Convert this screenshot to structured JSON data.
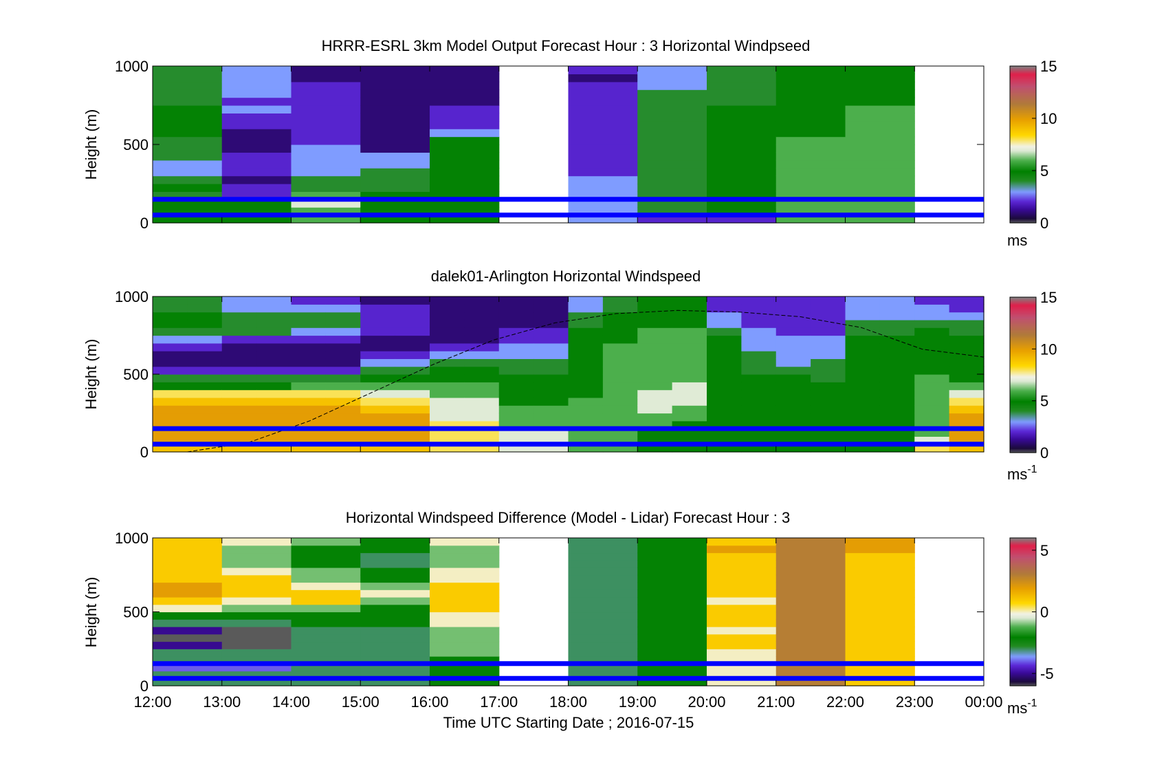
{
  "figure": {
    "xlabel": "Time UTC  Starting Date ; 2016-07-15",
    "xticks": [
      "12:00",
      "13:00",
      "14:00",
      "15:00",
      "16:00",
      "17:00",
      "18:00",
      "19:00",
      "20:00",
      "21:00",
      "22:00",
      "23:00",
      "00:00"
    ],
    "ylabel": "Height (m)",
    "yticks": [
      "0",
      "500",
      "1000"
    ],
    "reference_line_heights_m": [
      150,
      50
    ],
    "reference_line_color": "#0000ff",
    "colorbar_stops": [
      [
        "#5a5a5a",
        0
      ],
      [
        "#1b0a3c",
        0.03
      ],
      [
        "#3a0a9a",
        0.09
      ],
      [
        "#5c28d6",
        0.14
      ],
      [
        "#7f9cff",
        0.2
      ],
      [
        "#228b22",
        0.27
      ],
      [
        "#008000",
        0.33
      ],
      [
        "#4caf4c",
        0.4
      ],
      [
        "#dbe9d2",
        0.46
      ],
      [
        "#f2f2e4",
        0.49
      ],
      [
        "#ffd800",
        0.56
      ],
      [
        "#e8a000",
        0.66
      ],
      [
        "#b07a3a",
        0.76
      ],
      [
        "#c05070",
        0.87
      ],
      [
        "#e0204a",
        0.95
      ],
      [
        "#808080",
        1.0
      ]
    ]
  },
  "chart_data": [
    {
      "type": "heatmap",
      "title": "HRRR-ESRL 3km Model Output   Forecast Hour : 3 Horizontal Windpseed",
      "xlabel": "",
      "ylabel": "Height (m)",
      "xlim": [
        "12:00",
        "00:00"
      ],
      "ylim": [
        0,
        1000
      ],
      "clim": [
        0,
        15
      ],
      "colorbar_ticks": [
        "0",
        "5",
        "10",
        "15"
      ],
      "colorbar_unit": "ms",
      "colorbar_unit_sup": "",
      "hour_columns": [
        "12:00",
        "13:00",
        "14:00",
        "15:00",
        "16:00",
        "17:00",
        "18:00",
        "19:00",
        "20:00",
        "21:00",
        "22:00",
        "23:00"
      ],
      "heights_m": [
        25,
        75,
        125,
        175,
        225,
        275,
        325,
        375,
        425,
        475,
        525,
        575,
        625,
        675,
        725,
        775,
        825,
        875,
        925,
        975
      ],
      "values_ms": [
        [
          5,
          5,
          5,
          4,
          5,
          4,
          3,
          3,
          4,
          4,
          4,
          5,
          5,
          5,
          5,
          4,
          4,
          4,
          4,
          4
        ],
        [
          5,
          5,
          5,
          2,
          2,
          1,
          2,
          2,
          2,
          1,
          1,
          1,
          2,
          2,
          3,
          2,
          3,
          3,
          3,
          3
        ],
        [
          6,
          6,
          7,
          6,
          4,
          4,
          3,
          3,
          3,
          3,
          2,
          2,
          2,
          2,
          2,
          2,
          2,
          2,
          1,
          1
        ],
        [
          5,
          5,
          5,
          5,
          4,
          4,
          4,
          3,
          3,
          1,
          1,
          1,
          1,
          1,
          1,
          1,
          1,
          1,
          1,
          1
        ],
        [
          5,
          5,
          5,
          5,
          5,
          5,
          5,
          5,
          5,
          5,
          5,
          3,
          2,
          2,
          2,
          1,
          1,
          1,
          1,
          1
        ],
        [
          null,
          null,
          null,
          null,
          null,
          null,
          null,
          null,
          null,
          null,
          null,
          null,
          null,
          null,
          null,
          null,
          null,
          null,
          null,
          null
        ],
        [
          3,
          3,
          3,
          3,
          3,
          3,
          2,
          2,
          2,
          2,
          2,
          2,
          2,
          2,
          2,
          2,
          2,
          2,
          1,
          2
        ],
        [
          2,
          4,
          4,
          4,
          4,
          4,
          4,
          4,
          4,
          4,
          4,
          4,
          4,
          4,
          4,
          4,
          4,
          3,
          3,
          3
        ],
        [
          2,
          5,
          5,
          5,
          5,
          5,
          5,
          5,
          5,
          5,
          5,
          5,
          5,
          5,
          5,
          4,
          4,
          4,
          4,
          4
        ],
        [
          6,
          6,
          6,
          6,
          6,
          6,
          6,
          6,
          6,
          6,
          6,
          5,
          5,
          5,
          5,
          5,
          5,
          5,
          5,
          5
        ],
        [
          6,
          6,
          6,
          6,
          6,
          6,
          6,
          6,
          6,
          6,
          6,
          6,
          6,
          6,
          6,
          5,
          5,
          5,
          5,
          5
        ],
        [
          null,
          null,
          null,
          null,
          null,
          null,
          null,
          null,
          null,
          null,
          null,
          null,
          null,
          null,
          null,
          null,
          null,
          null,
          null,
          null
        ]
      ]
    },
    {
      "type": "heatmap",
      "title": "dalek01-Arlington  Horizontal Windspeed",
      "xlabel": "",
      "ylabel": "Height (m)",
      "xlim": [
        "12:00",
        "00:00"
      ],
      "ylim": [
        0,
        1000
      ],
      "clim": [
        0,
        15
      ],
      "colorbar_ticks": [
        "0",
        "5",
        "10",
        "15"
      ],
      "colorbar_unit": "ms",
      "colorbar_unit_sup": "-1",
      "half_hour_columns": [
        "12:00",
        "12:30",
        "13:00",
        "13:30",
        "14:00",
        "14:30",
        "15:00",
        "15:30",
        "16:00",
        "16:30",
        "17:00",
        "17:30",
        "18:00",
        "18:30",
        "19:00",
        "19:30",
        "20:00",
        "20:30",
        "21:00",
        "21:30",
        "22:00",
        "22:30",
        "23:00",
        "23:30"
      ],
      "heights_m": [
        25,
        75,
        125,
        175,
        225,
        275,
        325,
        375,
        425,
        475,
        525,
        575,
        625,
        675,
        725,
        775,
        825,
        875,
        925,
        975
      ],
      "values_ms": [
        [
          9,
          10,
          10,
          10,
          10,
          10,
          9,
          8,
          5,
          4,
          2,
          1,
          1,
          2,
          3,
          4,
          5,
          5,
          4,
          4
        ],
        [
          9,
          10,
          10,
          10,
          10,
          10,
          9,
          8,
          5,
          4,
          2,
          1,
          1,
          2,
          3,
          4,
          5,
          5,
          4,
          4
        ],
        [
          9,
          10,
          10,
          10,
          10,
          10,
          9,
          8,
          5,
          4,
          2,
          1,
          1,
          1,
          2,
          4,
          4,
          4,
          3,
          3
        ],
        [
          9,
          10,
          10,
          10,
          10,
          10,
          9,
          8,
          5,
          4,
          2,
          1,
          1,
          1,
          2,
          4,
          4,
          4,
          3,
          3
        ],
        [
          9,
          10,
          10,
          10,
          10,
          10,
          9,
          8,
          6,
          4,
          2,
          1,
          1,
          1,
          2,
          3,
          4,
          4,
          3,
          2
        ],
        [
          9,
          10,
          10,
          10,
          10,
          10,
          9,
          8,
          6,
          4,
          2,
          1,
          1,
          1,
          2,
          3,
          4,
          4,
          3,
          2
        ],
        [
          9,
          10,
          10,
          10,
          10,
          9,
          8,
          7,
          6,
          5,
          4,
          3,
          2,
          1,
          1,
          2,
          2,
          2,
          2,
          1
        ],
        [
          9,
          10,
          10,
          10,
          10,
          9,
          8,
          7,
          6,
          5,
          4,
          3,
          2,
          1,
          1,
          2,
          2,
          2,
          2,
          1
        ],
        [
          8,
          8,
          8,
          8,
          7,
          7,
          7,
          6,
          6,
          5,
          5,
          4,
          3,
          2,
          1,
          1,
          1,
          1,
          1,
          1
        ],
        [
          8,
          8,
          8,
          8,
          7,
          7,
          7,
          6,
          6,
          5,
          5,
          4,
          3,
          2,
          1,
          1,
          1,
          1,
          1,
          1
        ],
        [
          7,
          7,
          7,
          6,
          6,
          6,
          5,
          5,
          5,
          5,
          4,
          4,
          3,
          3,
          2,
          2,
          1,
          1,
          1,
          1
        ],
        [
          7,
          7,
          7,
          6,
          6,
          6,
          5,
          5,
          5,
          5,
          4,
          4,
          3,
          3,
          2,
          2,
          1,
          1,
          1,
          1
        ],
        [
          6,
          6,
          6,
          6,
          6,
          6,
          6,
          5,
          5,
          5,
          5,
          5,
          5,
          5,
          5,
          5,
          4,
          4,
          3,
          3
        ],
        [
          6,
          6,
          6,
          6,
          6,
          6,
          6,
          6,
          6,
          6,
          6,
          6,
          6,
          6,
          5,
          5,
          5,
          5,
          4,
          4
        ],
        [
          5,
          5,
          5,
          6,
          6,
          7,
          7,
          7,
          6,
          6,
          6,
          6,
          6,
          6,
          6,
          6,
          5,
          5,
          5,
          5
        ],
        [
          5,
          5,
          5,
          5,
          6,
          6,
          7,
          7,
          7,
          6,
          6,
          6,
          6,
          6,
          6,
          6,
          5,
          5,
          5,
          5
        ],
        [
          5,
          5,
          5,
          5,
          5,
          5,
          5,
          5,
          5,
          5,
          5,
          5,
          5,
          5,
          5,
          4,
          3,
          3,
          2,
          2
        ],
        [
          5,
          5,
          5,
          5,
          5,
          5,
          5,
          5,
          5,
          5,
          4,
          4,
          4,
          3,
          3,
          3,
          2,
          2,
          2,
          2
        ],
        [
          5,
          5,
          5,
          5,
          5,
          5,
          5,
          5,
          5,
          5,
          4,
          3,
          3,
          3,
          3,
          2,
          2,
          2,
          2,
          2
        ],
        [
          5,
          5,
          5,
          5,
          5,
          5,
          5,
          5,
          5,
          4,
          4,
          4,
          3,
          3,
          3,
          2,
          2,
          2,
          2,
          2
        ],
        [
          5,
          5,
          5,
          5,
          5,
          5,
          5,
          5,
          5,
          5,
          5,
          5,
          5,
          5,
          5,
          4,
          4,
          3,
          3,
          3
        ],
        [
          5,
          5,
          5,
          5,
          5,
          5,
          5,
          5,
          5,
          5,
          5,
          5,
          5,
          5,
          5,
          4,
          4,
          3,
          3,
          3
        ],
        [
          8,
          7,
          6,
          6,
          6,
          6,
          6,
          6,
          6,
          6,
          5,
          5,
          5,
          5,
          5,
          5,
          4,
          3,
          3,
          2
        ],
        [
          9,
          10,
          10,
          10,
          10,
          9,
          8,
          7,
          6,
          5,
          5,
          5,
          5,
          5,
          5,
          4,
          4,
          3,
          2,
          2
        ]
      ],
      "curve_label": "",
      "curve_heights_m": [
        0,
        60,
        200,
        380,
        560,
        720,
        830,
        890,
        910,
        900,
        870,
        800,
        660,
        610
      ]
    },
    {
      "type": "heatmap",
      "title": "Horizontal Windspeed Difference (Model - Lidar) Forecast Hour : 3",
      "xlabel": "Time UTC  Starting Date ; 2016-07-15",
      "ylabel": "Height (m)",
      "xlim": [
        "12:00",
        "00:00"
      ],
      "ylim": [
        0,
        1000
      ],
      "clim": [
        -6,
        6
      ],
      "colorbar_ticks": [
        "-5",
        "0",
        "5"
      ],
      "colorbar_unit": "ms",
      "colorbar_unit_sup": "-1",
      "hour_columns": [
        "12:00",
        "13:00",
        "14:00",
        "15:00",
        "16:00",
        "17:00",
        "18:00",
        "19:00",
        "20:00",
        "21:00",
        "22:00",
        "23:00"
      ],
      "heights_m": [
        25,
        75,
        125,
        175,
        225,
        275,
        325,
        375,
        425,
        475,
        525,
        575,
        625,
        675,
        725,
        775,
        825,
        875,
        925,
        975
      ],
      "values_ms": [
        [
          -3,
          -3,
          -4,
          -3,
          -3,
          -5,
          -6,
          -5,
          -3,
          -2,
          0,
          1,
          2,
          2,
          1,
          1,
          1,
          1,
          1,
          1
        ],
        [
          -3,
          -3,
          -4,
          -3,
          -3,
          -6,
          -6,
          -6,
          -3,
          -2,
          -1,
          0,
          1,
          1,
          1,
          0,
          -1,
          -1,
          -1,
          0
        ],
        [
          -3,
          -3,
          -3,
          -3,
          -3,
          -3,
          -3,
          -3,
          -2,
          -2,
          -1,
          1,
          1,
          0,
          -1,
          -1,
          -2,
          -2,
          -2,
          -1
        ],
        [
          -3,
          -3,
          -3,
          -3,
          -3,
          -3,
          -3,
          -3,
          -2,
          -2,
          -2,
          -1,
          0,
          -1,
          -2,
          -2,
          -3,
          -3,
          -2,
          -2
        ],
        [
          -2,
          -2,
          -2,
          -2,
          -1,
          -1,
          -1,
          -1,
          0,
          0,
          1,
          1,
          1,
          1,
          0,
          0,
          -1,
          -1,
          -1,
          0
        ],
        [
          null,
          null,
          null,
          null,
          null,
          null,
          null,
          null,
          null,
          null,
          null,
          null,
          null,
          null,
          null,
          null,
          null,
          null,
          null,
          null
        ],
        [
          -3,
          -3,
          -3,
          -3,
          -3,
          -3,
          -3,
          -3,
          -3,
          -3,
          -3,
          -3,
          -3,
          -3,
          -3,
          -3,
          -3,
          -3,
          -3,
          -3
        ],
        [
          -2,
          -2,
          -2,
          -2,
          -2,
          -2,
          -2,
          -2,
          -2,
          -2,
          -2,
          -2,
          -2,
          -2,
          -2,
          -2,
          -2,
          -2,
          -2,
          -2
        ],
        [
          0,
          0,
          0,
          0,
          0,
          1,
          1,
          0,
          1,
          1,
          1,
          0,
          1,
          1,
          1,
          1,
          1,
          1,
          2,
          1
        ],
        [
          3,
          3,
          3,
          3,
          3,
          3,
          3,
          3,
          3,
          3,
          3,
          3,
          3,
          3,
          3,
          3,
          3,
          3,
          3,
          3
        ],
        [
          1,
          1,
          1,
          1,
          1,
          1,
          1,
          1,
          1,
          1,
          1,
          1,
          1,
          1,
          1,
          1,
          1,
          1,
          2,
          2
        ],
        [
          null,
          null,
          null,
          null,
          null,
          null,
          null,
          null,
          null,
          null,
          null,
          null,
          null,
          null,
          null,
          null,
          null,
          null,
          null,
          null
        ]
      ]
    }
  ]
}
